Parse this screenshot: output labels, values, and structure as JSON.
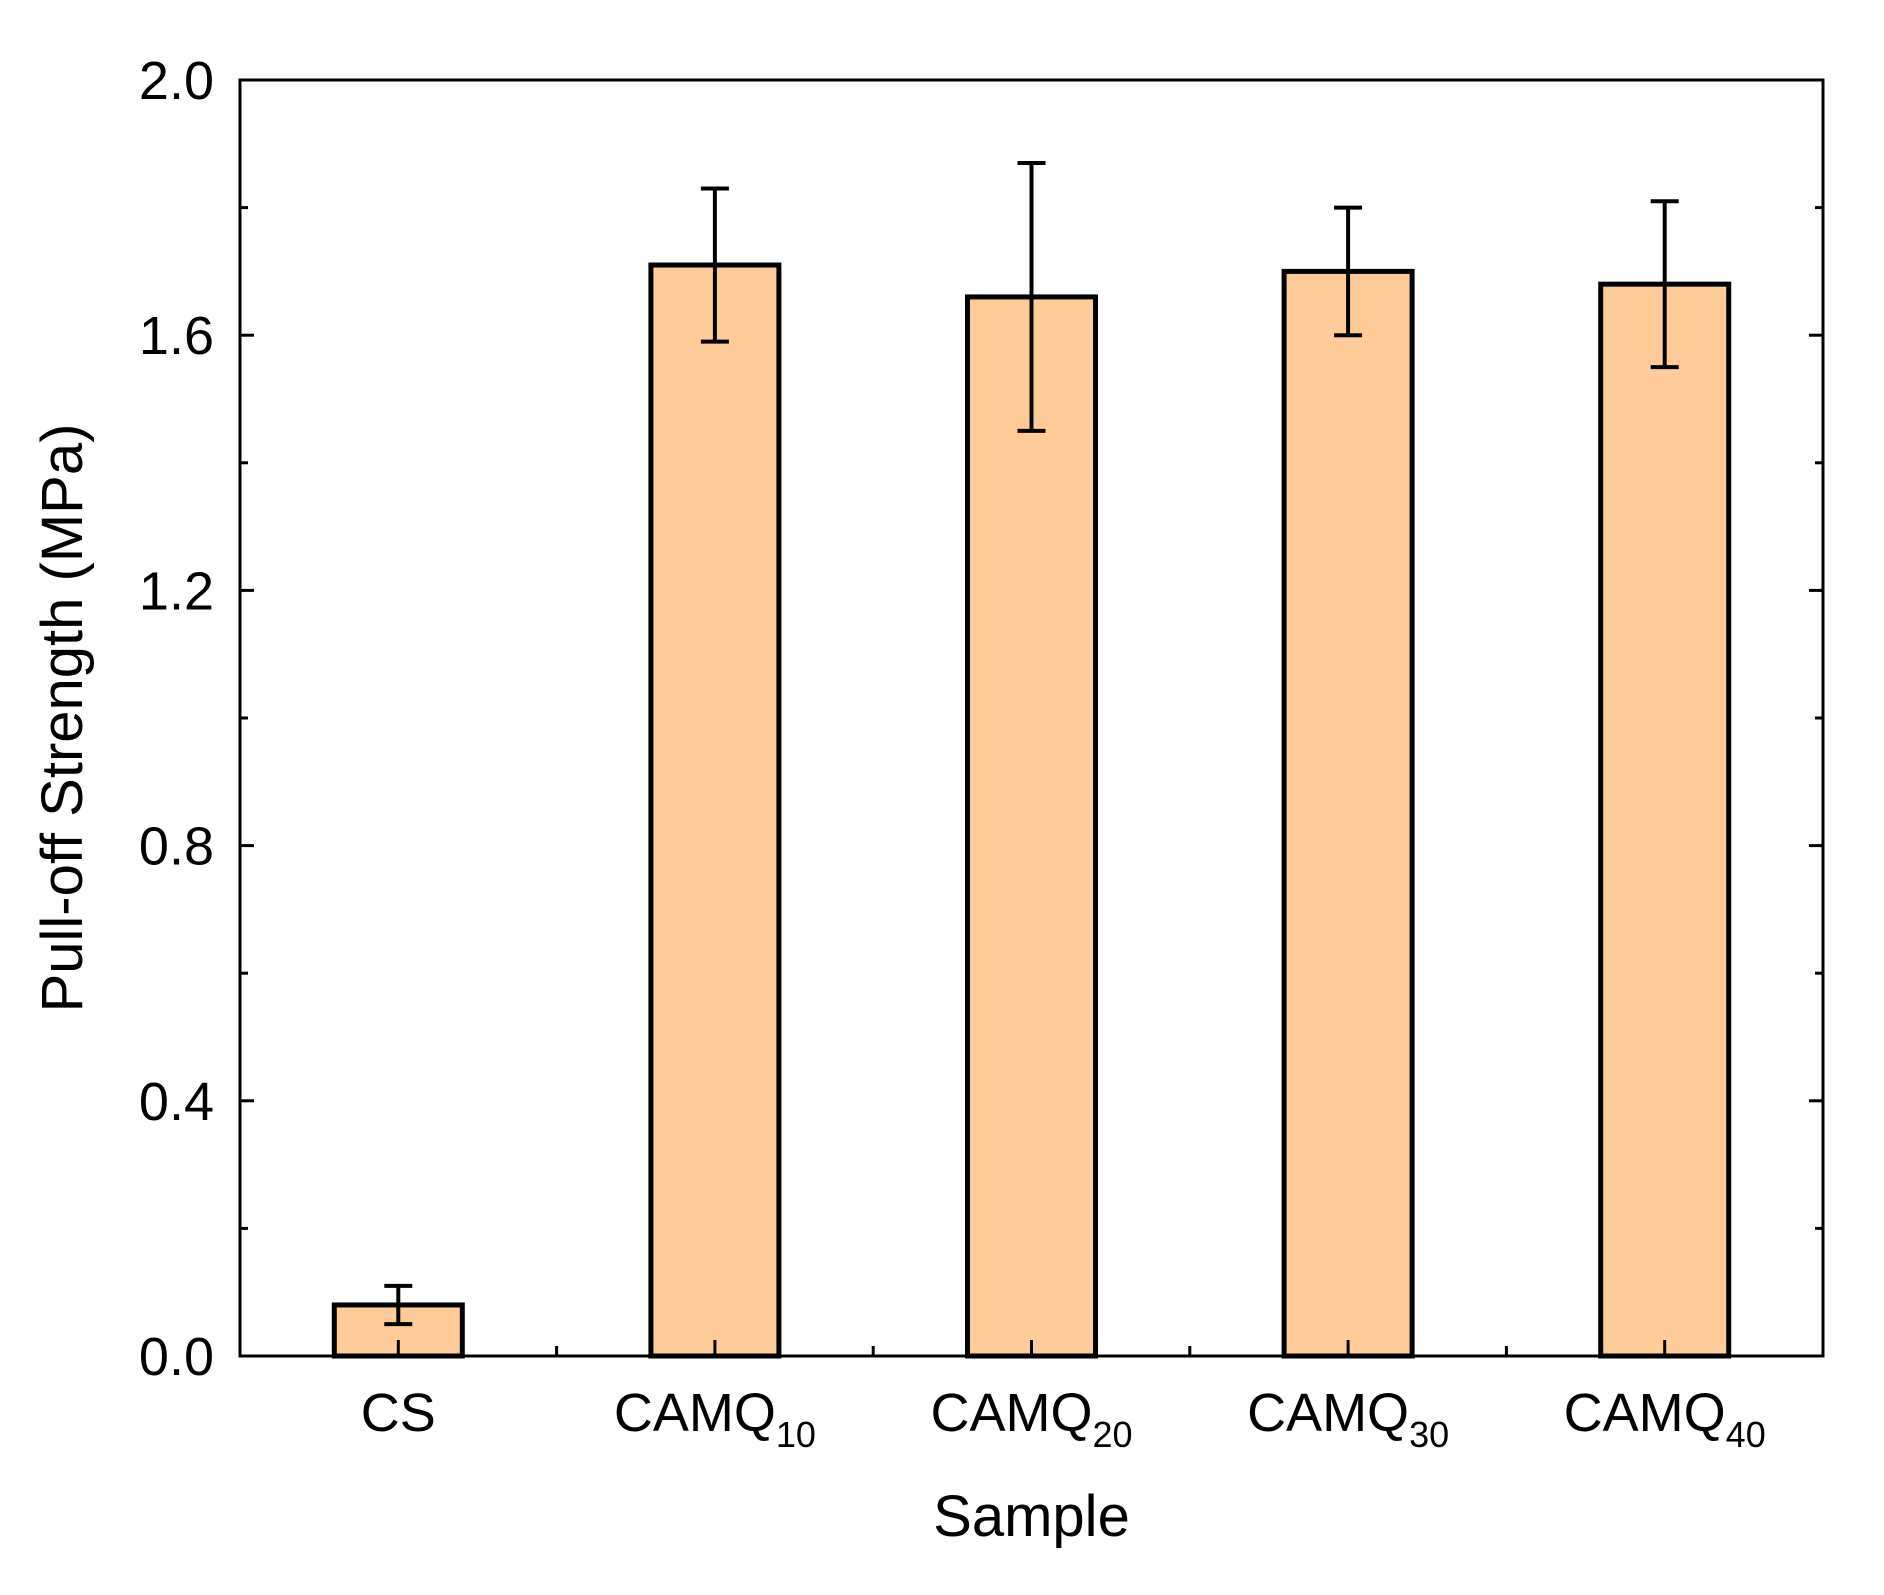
{
  "chart_data": {
    "type": "bar",
    "title": "",
    "xlabel": "Sample",
    "ylabel": "Pull-off Strength (MPa)",
    "ylim": [
      0.0,
      2.0
    ],
    "yticks": [
      "0.0",
      "0.4",
      "0.8",
      "1.2",
      "1.6",
      "2.0"
    ],
    "ytick_values": [
      0.0,
      0.4,
      0.8,
      1.2,
      1.6,
      2.0
    ],
    "grid": false,
    "categories": [
      {
        "base": "CS",
        "sub": ""
      },
      {
        "base": "CAMQ",
        "sub": "10"
      },
      {
        "base": "CAMQ",
        "sub": "20"
      },
      {
        "base": "CAMQ",
        "sub": "30"
      },
      {
        "base": "CAMQ",
        "sub": "40"
      }
    ],
    "values": [
      0.08,
      1.71,
      1.66,
      1.7,
      1.68
    ],
    "error_low": [
      0.05,
      1.59,
      1.45,
      1.6,
      1.55
    ],
    "error_high": [
      0.11,
      1.83,
      1.87,
      1.8,
      1.81
    ],
    "bar_color": "#FFCC99",
    "edge_color": "#000000"
  }
}
